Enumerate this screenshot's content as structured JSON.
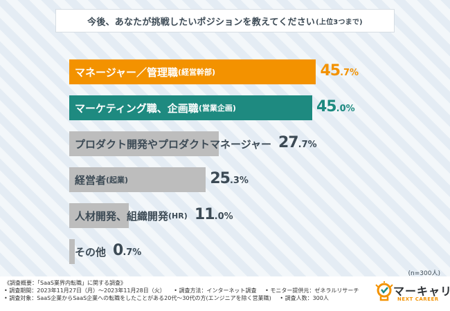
{
  "title": "今後、あなたが挑戦したいポジションを教えてください",
  "title_sub": "(上位3つまで)",
  "sample_size": "(n=300人)",
  "colors": {
    "manager": "#f39200",
    "marketing": "#1e8a80",
    "other": "#bdbdbd",
    "text_dark": "#3c4a55"
  },
  "chart_data": {
    "type": "bar",
    "orientation": "horizontal",
    "title": "今後、あなたが挑戦したいポジションを教えてください(上位3つまで)",
    "categories": [
      {
        "main": "マネージャー／管理職",
        "sub": "(経営幹部)"
      },
      {
        "main": "マーケティング職、企画職",
        "sub": "(営業企画)"
      },
      {
        "main": "プロダクト開発やプロダクトマネージャー",
        "sub": ""
      },
      {
        "main": "経営者",
        "sub": "(起業)"
      },
      {
        "main": "人材開発、組織開発",
        "sub": "(HR)"
      },
      {
        "main": "その他",
        "sub": ""
      }
    ],
    "values": [
      45.7,
      45.0,
      27.7,
      25.3,
      11.0,
      0.7
    ],
    "value_labels": [
      {
        "int": "45",
        "dec": ".7%"
      },
      {
        "int": "45",
        "dec": ".0%"
      },
      {
        "int": "27",
        "dec": ".7%"
      },
      {
        "int": "25",
        "dec": ".3%"
      },
      {
        "int": "11",
        "dec": ".0%"
      },
      {
        "int": "0",
        "dec": ".7%"
      }
    ],
    "unit": "%",
    "xlim": [
      0,
      50
    ]
  },
  "footer": {
    "line1": "《調査概要：「SaaS業界内転職」に関する調査》",
    "line2_a": "• 調査期間：2023年11月27日（月）～2023年11月28日（火）",
    "line2_b": "• 調査方法：インターネット調査",
    "line2_c": "• モニター提供元：ゼネラルリサーチ",
    "line3_a": "• 調査対象：SaaS企業からSaaS企業への転職をしたことがある20代～30代の方(エンジニアを除く営業職)",
    "line3_b": "• 調査人数：300人"
  },
  "logo": {
    "name": "マーキャリ",
    "sub": "NEXT CAREER"
  }
}
